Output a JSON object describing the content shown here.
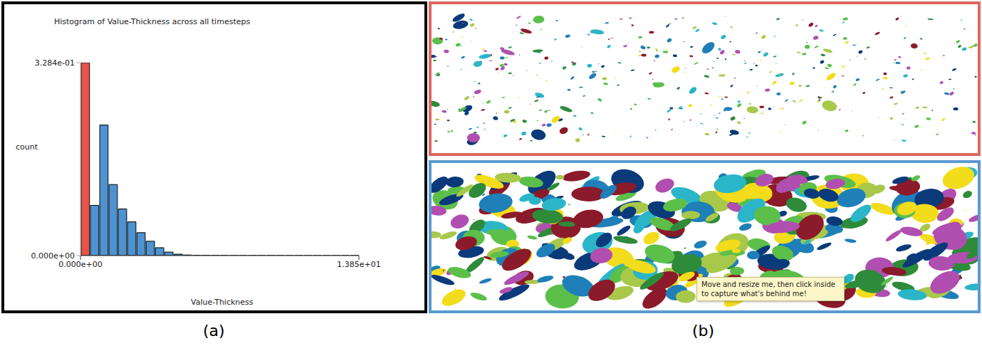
{
  "chart_data": {
    "type": "histogram",
    "title": "Histogram of Value-Thickness across all timesteps",
    "x_label": "Value-Thickness",
    "y_label": "count",
    "bins": [
      0,
      0.462,
      0.923,
      1.385,
      1.847,
      2.308,
      2.77,
      3.232,
      3.693,
      4.155,
      4.617,
      5.078,
      5.54,
      6.002,
      6.463,
      6.925,
      7.387,
      7.848,
      8.31,
      8.772,
      9.233,
      9.695,
      10.157,
      10.618,
      11.08,
      11.542,
      12.003,
      12.465,
      12.927,
      13.388,
      13.85
    ],
    "values": [
      0.3284,
      0.0855,
      0.2222,
      0.1209,
      0.0794,
      0.0574,
      0.039,
      0.0244,
      0.0134,
      0.006,
      0.0024,
      0.001,
      0.0005,
      0.0004,
      0.0003,
      0.0003,
      0.0002,
      0.0002,
      0.0002,
      0.0002,
      0.0002,
      0.0001,
      0.0001,
      0.0001,
      0.0001,
      0.0001,
      0.0001,
      0.0001,
      0.0001,
      0.0001
    ],
    "colors": [
      "#e8534a",
      "#4d93d1",
      "#4d93d1",
      "#4d93d1",
      "#4d93d1",
      "#4d93d1",
      "#4d93d1",
      "#4d93d1",
      "#4d93d1",
      "#4d93d1",
      "#4d93d1",
      "#4d93d1",
      "#4d93d1",
      "#4d93d1",
      "#4d93d1",
      "#4d93d1",
      "#4d93d1",
      "#4d93d1",
      "#4d93d1",
      "#4d93d1",
      "#4d93d1",
      "#4d93d1",
      "#4d93d1",
      "#4d93d1",
      "#4d93d1",
      "#4d93d1",
      "#4d93d1",
      "#4d93d1",
      "#4d93d1",
      "#4d93d1"
    ],
    "xlim": [
      0,
      13.85
    ],
    "xticks": [
      {
        "value": 0,
        "label": "0.000e+00"
      },
      {
        "value": 13.85,
        "label": "1.385e+01"
      }
    ],
    "ylim": [
      0,
      0.3284
    ],
    "yticks": [
      {
        "value": 0,
        "label": "0.000e+00"
      },
      {
        "value": 0.3284,
        "label": "3.284e-01"
      }
    ]
  },
  "panel_labels": [
    "(a)",
    "(b)"
  ],
  "screenshot": {
    "tooltip": "Move and resize me, then click inside to capture what's behind me!"
  }
}
